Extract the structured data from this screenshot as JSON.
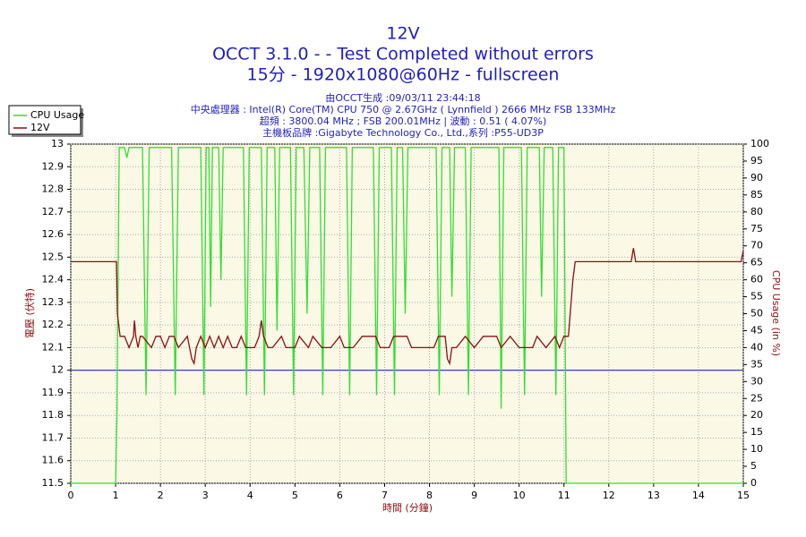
{
  "chart_data": {
    "type": "line",
    "title": "12V",
    "subtitle": [
      "OCCT 3.1.0 -  - Test Completed without errors",
      "15分 - 1920x1080@60Hz - fullscreen"
    ],
    "info": [
      "由OCCT生成 :09/03/11 23:44:18",
      "中央處理器 : Intel(R) Core(TM) CPU 750 @ 2.67GHz ( Lynnfield ) 2666 MHz FSB 133MHz",
      "超頻 : 3800.04 MHz ; FSB 200.01MHz | 波動 : 0.51 ( 4.07%)",
      "主機板品牌 :Gigabyte Technology Co., Ltd.,系列 :P55-UD3P"
    ],
    "xlabel": "時間 (分鐘)",
    "ylabel": "電壓 (伏特)",
    "y2label": "CPU Usage (in %)",
    "xlim": [
      0,
      15
    ],
    "xticks": [
      0,
      1,
      2,
      3,
      4,
      5,
      6,
      7,
      8,
      9,
      10,
      11,
      12,
      13,
      14,
      15
    ],
    "ylim": [
      11.5,
      13
    ],
    "yticks": [
      11.5,
      11.6,
      11.7,
      11.8,
      11.9,
      12,
      12.1,
      12.2,
      12.3,
      12.4,
      12.5,
      12.6,
      12.7,
      12.8,
      12.9,
      13
    ],
    "y2lim": [
      0,
      100
    ],
    "y2ticks": [
      0,
      5,
      10,
      15,
      20,
      25,
      30,
      35,
      40,
      45,
      50,
      55,
      60,
      65,
      70,
      75,
      80,
      85,
      90,
      95,
      100
    ],
    "grid": true,
    "legend": "top-left",
    "reference_line": {
      "value": 12,
      "color": "#2a2aa8"
    },
    "series": [
      {
        "name": "CPU Usage",
        "color": "#33dd33",
        "axis": "y2",
        "x": [
          0,
          1.0,
          1.03,
          1.08,
          1.2,
          1.25,
          1.3,
          1.6,
          1.68,
          1.75,
          2.25,
          2.33,
          2.4,
          2.9,
          2.97,
          3.02,
          3.08,
          3.12,
          3.16,
          3.3,
          3.35,
          3.4,
          3.85,
          3.92,
          3.98,
          4.25,
          4.32,
          4.38,
          4.55,
          4.6,
          4.66,
          4.9,
          4.97,
          5.03,
          5.2,
          5.27,
          5.33,
          5.55,
          5.62,
          5.68,
          6.15,
          6.22,
          6.28,
          6.75,
          6.82,
          6.88,
          7.15,
          7.22,
          7.28,
          7.4,
          7.46,
          7.52,
          8.15,
          8.22,
          8.28,
          8.45,
          8.5,
          8.56,
          8.8,
          8.87,
          8.93,
          9.55,
          9.6,
          9.66,
          10.05,
          10.12,
          10.18,
          10.45,
          10.5,
          10.56,
          10.75,
          10.82,
          10.88,
          11.0,
          11.05,
          15
        ],
        "values": [
          0,
          0,
          20,
          99,
          99,
          96,
          99,
          99,
          26,
          99,
          99,
          26,
          99,
          99,
          26,
          99,
          99,
          52,
          99,
          99,
          60,
          99,
          99,
          26,
          99,
          99,
          26,
          99,
          99,
          45,
          99,
          99,
          26,
          99,
          99,
          50,
          99,
          99,
          26,
          99,
          99,
          26,
          99,
          99,
          26,
          99,
          99,
          26,
          99,
          99,
          50,
          99,
          99,
          26,
          99,
          99,
          55,
          99,
          99,
          26,
          99,
          99,
          22,
          99,
          99,
          26,
          99,
          99,
          55,
          99,
          99,
          26,
          99,
          99,
          0,
          0
        ]
      },
      {
        "name": "12V",
        "color": "#8b1010",
        "x": [
          0,
          1.02,
          1.04,
          1.1,
          1.2,
          1.3,
          1.4,
          1.42,
          1.45,
          1.5,
          1.55,
          1.6,
          1.8,
          1.9,
          2.0,
          2.1,
          2.2,
          2.3,
          2.4,
          2.6,
          2.7,
          2.75,
          2.8,
          2.9,
          3.0,
          3.1,
          3.2,
          3.3,
          3.4,
          3.5,
          3.6,
          3.7,
          3.8,
          3.9,
          4.1,
          4.2,
          4.25,
          4.3,
          4.4,
          4.5,
          4.7,
          4.8,
          5.0,
          5.1,
          5.3,
          5.4,
          5.6,
          5.8,
          6.0,
          6.1,
          6.3,
          6.5,
          6.8,
          6.9,
          7.1,
          7.2,
          7.5,
          7.6,
          7.9,
          8.1,
          8.2,
          8.35,
          8.4,
          8.45,
          8.5,
          8.6,
          8.8,
          9.0,
          9.2,
          9.5,
          9.6,
          9.8,
          10.0,
          10.3,
          10.4,
          10.6,
          10.8,
          10.9,
          11.0,
          11.1,
          11.2,
          11.25,
          12.5,
          12.55,
          12.6,
          14.95,
          15
        ],
        "values": [
          12.48,
          12.48,
          12.25,
          12.15,
          12.15,
          12.1,
          12.15,
          12.22,
          12.15,
          12.1,
          12.15,
          12.15,
          12.1,
          12.15,
          12.15,
          12.1,
          12.15,
          12.15,
          12.1,
          12.15,
          12.05,
          12.03,
          12.1,
          12.15,
          12.1,
          12.15,
          12.1,
          12.15,
          12.1,
          12.15,
          12.1,
          12.1,
          12.15,
          12.1,
          12.1,
          12.15,
          12.22,
          12.15,
          12.1,
          12.1,
          12.15,
          12.1,
          12.1,
          12.15,
          12.1,
          12.15,
          12.1,
          12.1,
          12.15,
          12.1,
          12.1,
          12.15,
          12.15,
          12.1,
          12.1,
          12.15,
          12.15,
          12.1,
          12.1,
          12.1,
          12.15,
          12.15,
          12.05,
          12.03,
          12.1,
          12.1,
          12.15,
          12.1,
          12.15,
          12.15,
          12.1,
          12.15,
          12.1,
          12.1,
          12.15,
          12.1,
          12.15,
          12.1,
          12.15,
          12.15,
          12.4,
          12.48,
          12.48,
          12.54,
          12.48,
          12.48,
          12.53
        ]
      }
    ]
  }
}
